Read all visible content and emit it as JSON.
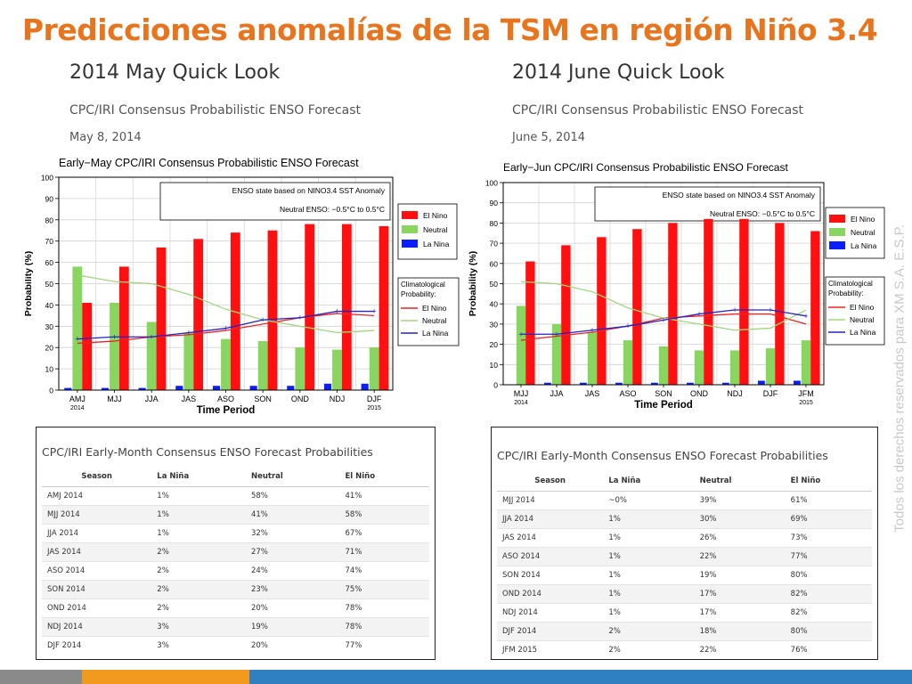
{
  "slide_title": "Predicciones anomalías de la TSM en región Niño 3.4",
  "watermark": "Todos los derechos reservados para XM S.A. E.S.P.",
  "colors": {
    "el_nino": "#ff1010",
    "neutral": "#88d560",
    "la_nina": "#0a1eff",
    "line_el_nino": "#ee2222",
    "line_neutral": "#9ed87c",
    "line_la_nina": "#2222cc",
    "title_orange": "#e8741e"
  },
  "panels": [
    {
      "heading": "2014 May Quick Look",
      "subheading": "CPC/IRI Consensus Probabilistic ENSO Forecast",
      "date": "May 8, 2014",
      "chart_data": {
        "type": "bar",
        "title": "Early−May CPC/IRI Consensus Probabilistic ENSO Forecast",
        "xlabel": "Time Period",
        "ylabel": "Probability (%)",
        "ylim": [
          0,
          100
        ],
        "yticks": [
          "0",
          "10",
          "20",
          "30",
          "40",
          "50",
          "60",
          "70",
          "80",
          "90",
          "100"
        ],
        "categories": [
          "AMJ",
          "MJJ",
          "JJA",
          "JAS",
          "ASO",
          "SON",
          "OND",
          "NDJ",
          "DJF"
        ],
        "first_year": "2014",
        "last_year": "2015",
        "annotation_lines": [
          "ENSO state based on NINO3.4 SST Anomaly",
          "Neutral ENSO: −0.5°C to 0.5°C"
        ],
        "legend": [
          "El Nino",
          "Neutral",
          "La Nina"
        ],
        "clim_title": [
          "Climatological",
          "Probability:"
        ],
        "clim_legend": [
          "El Nino",
          "Neutral",
          "La Nina"
        ],
        "series": [
          {
            "name": "La Nina",
            "values": [
              1,
              1,
              1,
              2,
              2,
              2,
              2,
              3,
              3
            ]
          },
          {
            "name": "Neutral",
            "values": [
              58,
              41,
              32,
              27,
              24,
              23,
              20,
              19,
              20
            ]
          },
          {
            "name": "El Nino",
            "values": [
              41,
              58,
              67,
              71,
              74,
              75,
              78,
              78,
              77
            ]
          }
        ],
        "climatology": {
          "El Nino": [
            22,
            23,
            25,
            26,
            28,
            31,
            34,
            36,
            35
          ],
          "Neutral": [
            54,
            51,
            50,
            45,
            38,
            33,
            30,
            27,
            28
          ],
          "La Nina": [
            24,
            25,
            25,
            27,
            29,
            33,
            34,
            37,
            37
          ]
        },
        "grid": true,
        "legend_position": "right"
      },
      "table": {
        "title": "CPC/IRI Early-Month Consensus ENSO Forecast Probabilities",
        "headers": [
          "Season",
          "La Niña",
          "Neutral",
          "El Niño"
        ],
        "rows": [
          [
            "AMJ 2014",
            "1%",
            "58%",
            "41%"
          ],
          [
            "MJJ 2014",
            "1%",
            "41%",
            "58%"
          ],
          [
            "JJA 2014",
            "1%",
            "32%",
            "67%"
          ],
          [
            "JAS 2014",
            "2%",
            "27%",
            "71%"
          ],
          [
            "ASO 2014",
            "2%",
            "24%",
            "74%"
          ],
          [
            "SON 2014",
            "2%",
            "23%",
            "75%"
          ],
          [
            "OND 2014",
            "2%",
            "20%",
            "78%"
          ],
          [
            "NDJ 2014",
            "3%",
            "19%",
            "78%"
          ],
          [
            "DJF 2014",
            "3%",
            "20%",
            "77%"
          ]
        ]
      }
    },
    {
      "heading": "2014 June Quick Look",
      "subheading": "CPC/IRI Consensus Probabilistic ENSO Forecast",
      "date": "June 5, 2014",
      "chart_data": {
        "type": "bar",
        "title": "Early−Jun CPC/IRI Consensus Probabilistic ENSO Forecast",
        "xlabel": "Time Period",
        "ylabel": "Probability (%)",
        "ylim": [
          0,
          100
        ],
        "yticks": [
          "0",
          "10",
          "20",
          "30",
          "40",
          "50",
          "60",
          "70",
          "80",
          "90",
          "100"
        ],
        "categories": [
          "MJJ",
          "JJA",
          "JAS",
          "ASO",
          "SON",
          "OND",
          "NDJ",
          "DJF",
          "JFM"
        ],
        "first_year": "2014",
        "last_year": "2015",
        "annotation_lines": [
          "ENSO state based on NINO3.4 SST Anomaly",
          "Neutral ENSO: −0.5°C to 0.5°C"
        ],
        "legend": [
          "El Nino",
          "Neutral",
          "La Nina"
        ],
        "clim_title": [
          "Climatological",
          "Probability:"
        ],
        "clim_legend": [
          "El Nino",
          "Neutral",
          "La Nina"
        ],
        "series": [
          {
            "name": "La Nina",
            "values": [
              0,
              1,
              1,
              1,
              1,
              1,
              1,
              2,
              2
            ]
          },
          {
            "name": "Neutral",
            "values": [
              39,
              30,
              26,
              22,
              19,
              17,
              17,
              18,
              22
            ]
          },
          {
            "name": "El Nino",
            "values": [
              61,
              69,
              73,
              77,
              80,
              82,
              82,
              80,
              76
            ]
          }
        ],
        "climatology": {
          "El Nino": [
            22,
            24,
            26,
            29,
            33,
            34,
            35,
            35,
            30
          ],
          "Neutral": [
            51,
            50,
            46,
            38,
            33,
            30,
            27,
            28,
            37
          ],
          "La Nina": [
            25,
            25,
            27,
            29,
            32,
            35,
            37,
            37,
            34
          ]
        },
        "grid": true,
        "legend_position": "right"
      },
      "table": {
        "title": "CPC/IRI Early-Month Consensus ENSO Forecast Probabilities",
        "headers": [
          "Season",
          "La Niña",
          "Neutral",
          "El Niño"
        ],
        "rows": [
          [
            "MJJ 2014",
            "~0%",
            "39%",
            "61%"
          ],
          [
            "JJA 2014",
            "1%",
            "30%",
            "69%"
          ],
          [
            "JAS 2014",
            "1%",
            "26%",
            "73%"
          ],
          [
            "ASO 2014",
            "1%",
            "22%",
            "77%"
          ],
          [
            "SON 2014",
            "1%",
            "19%",
            "80%"
          ],
          [
            "OND 2014",
            "1%",
            "17%",
            "82%"
          ],
          [
            "NDJ 2014",
            "1%",
            "17%",
            "82%"
          ],
          [
            "DJF 2014",
            "2%",
            "18%",
            "80%"
          ],
          [
            "JFM 2015",
            "2%",
            "22%",
            "76%"
          ]
        ]
      }
    }
  ]
}
